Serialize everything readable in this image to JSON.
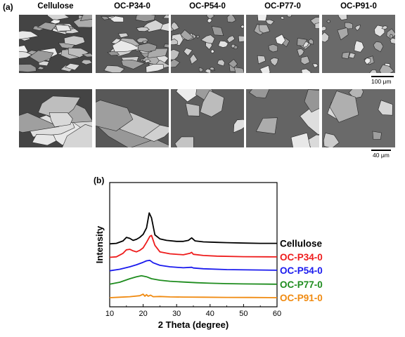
{
  "figure": {
    "panel_a_label": "(a)",
    "panel_b_label": "(b)",
    "sem": {
      "columns": [
        "Cellulose",
        "OC-P34-0",
        "OC-P54-0",
        "OC-P77-0",
        "OC-P91-0"
      ],
      "scalebar_top": "100 μm",
      "scalebar_bottom": "40 μm"
    }
  },
  "chart_data": {
    "type": "line",
    "xlabel": "2 Theta (degree)",
    "ylabel": "Intensity",
    "xlim": [
      10,
      60
    ],
    "xticks": [
      10,
      20,
      30,
      40,
      50,
      60
    ],
    "grid": false,
    "legend": "labels placed at the right end of each curve",
    "stacked_offset": true,
    "series": [
      {
        "name": "Cellulose",
        "color": "#000000",
        "offset": 4,
        "x": [
          10,
          12,
          14,
          15,
          16,
          17,
          18,
          19,
          20,
          21,
          21.8,
          22.5,
          23.5,
          25,
          27,
          30,
          32,
          33.5,
          34.5,
          35.5,
          38,
          42,
          45,
          50,
          55,
          60
        ],
        "y": [
          0.0,
          0.05,
          0.3,
          0.65,
          0.55,
          0.35,
          0.45,
          0.65,
          0.95,
          1.6,
          3.1,
          2.6,
          0.9,
          0.5,
          0.35,
          0.25,
          0.25,
          0.35,
          0.6,
          0.3,
          0.2,
          0.15,
          0.12,
          0.08,
          0.05,
          0.05
        ]
      },
      {
        "name": "OC-P34-0",
        "color": "#ee1c1c",
        "offset": 3,
        "x": [
          10,
          12,
          14,
          15,
          16,
          17,
          18,
          19,
          20,
          21,
          22,
          22.5,
          23.5,
          25,
          28,
          32,
          34,
          34.5,
          35,
          38,
          42,
          50,
          60
        ],
        "y": [
          0.0,
          0.05,
          0.4,
          0.75,
          0.8,
          0.65,
          0.55,
          0.7,
          0.95,
          1.5,
          2.1,
          2.2,
          1.2,
          0.55,
          0.35,
          0.25,
          0.4,
          0.5,
          0.3,
          0.18,
          0.12,
          0.06,
          0.04
        ]
      },
      {
        "name": "OC-P54-0",
        "color": "#1a1aee",
        "offset": 2,
        "x": [
          10,
          13,
          16,
          18,
          20,
          21,
          22,
          23,
          25,
          28,
          32,
          34.5,
          35,
          38,
          45,
          60
        ],
        "y": [
          0.0,
          0.15,
          0.4,
          0.6,
          0.85,
          1.0,
          1.05,
          0.8,
          0.55,
          0.4,
          0.3,
          0.35,
          0.28,
          0.2,
          0.12,
          0.05
        ]
      },
      {
        "name": "OC-P77-0",
        "color": "#1e8c1e",
        "offset": 1,
        "x": [
          10,
          13,
          16,
          18,
          19.5,
          21,
          22.5,
          25,
          28,
          32,
          36,
          40,
          45,
          50,
          60
        ],
        "y": [
          0.0,
          0.2,
          0.55,
          0.75,
          0.85,
          0.75,
          0.55,
          0.4,
          0.3,
          0.22,
          0.15,
          0.1,
          0.06,
          0.03,
          0.0
        ]
      },
      {
        "name": "OC-P91-0",
        "color": "#f08a10",
        "offset": 0,
        "x": [
          10,
          13,
          16,
          19,
          20,
          20.5,
          21,
          21.5,
          22.2,
          23,
          25,
          28,
          32,
          38,
          45,
          52,
          60
        ],
        "y": [
          0.0,
          0.05,
          0.1,
          0.2,
          0.35,
          0.15,
          0.3,
          0.15,
          0.25,
          0.1,
          0.12,
          0.08,
          0.06,
          0.05,
          0.03,
          0.02,
          0.0
        ]
      }
    ]
  }
}
